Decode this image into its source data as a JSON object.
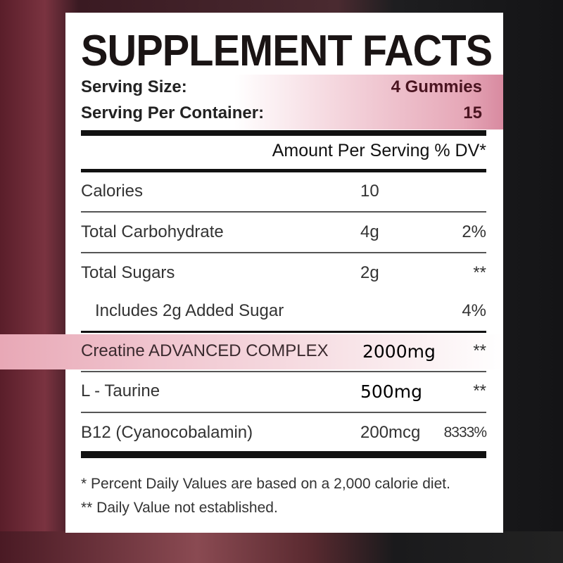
{
  "title": "SUPPLEMENT FACTS",
  "serving": [
    {
      "label": "Serving Size:",
      "value": "4 Gummies"
    },
    {
      "label": "Serving Per Container:",
      "value": "15"
    }
  ],
  "header": "Amount Per Serving % DV*",
  "rows": [
    {
      "name": "Calories",
      "amount": "10",
      "dv": ""
    },
    {
      "name": "Total Carbohydrate",
      "amount": "4g",
      "dv": "2%"
    },
    {
      "name": "Total Sugars",
      "amount": "2g",
      "dv": "**"
    },
    {
      "name": "Includes 2g Added Sugar",
      "amount": "",
      "dv": "4%"
    },
    {
      "name": "Creatine ADVANCED COMPLEX",
      "amount": "2000mg",
      "dv": "**"
    },
    {
      "name": "L - Taurine",
      "amount": "500mg",
      "dv": "**"
    },
    {
      "name": "B12 (Cyanocobalamin)",
      "amount": "200mcg",
      "dv": "8333%"
    }
  ],
  "footnotes": [
    "* Percent Daily Values are based on a 2,000 calorie diet.",
    "** Daily Value not established."
  ],
  "colors": {
    "highlight": "#e8a8b6",
    "text": "#1a1414"
  }
}
